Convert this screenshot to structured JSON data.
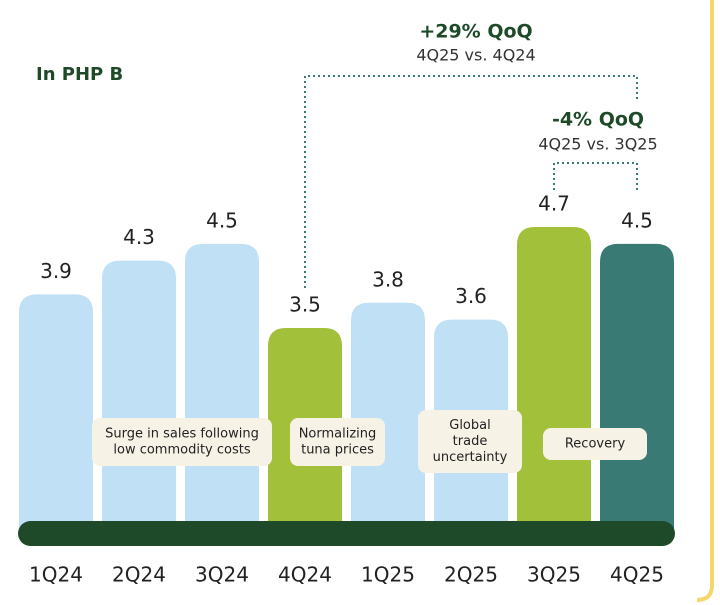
{
  "chart_data": {
    "type": "bar",
    "unit_label": "In PHP B",
    "categories": [
      "1Q24",
      "2Q24",
      "3Q24",
      "4Q24",
      "1Q25",
      "2Q25",
      "3Q25",
      "4Q25"
    ],
    "values": [
      3.9,
      4.3,
      4.5,
      3.5,
      3.8,
      3.6,
      4.7,
      4.5
    ],
    "colors": [
      "#bfe0f5",
      "#bfe0f5",
      "#bfe0f5",
      "#a3c03a",
      "#bfe0f5",
      "#bfe0f5",
      "#a3c03a",
      "#3a7a74"
    ],
    "comparisons": [
      {
        "label": "+29% QoQ",
        "detail": "4Q25 vs. 4Q24"
      },
      {
        "label": "-4% QoQ",
        "detail": "4Q25 vs. 3Q25"
      }
    ],
    "notes": [
      [
        "Surge in sales following",
        "low commodity costs"
      ],
      [
        "Normalizing",
        "tuna prices"
      ],
      [
        "Global",
        "trade",
        "uncertainty"
      ],
      [
        "Recovery"
      ]
    ]
  }
}
